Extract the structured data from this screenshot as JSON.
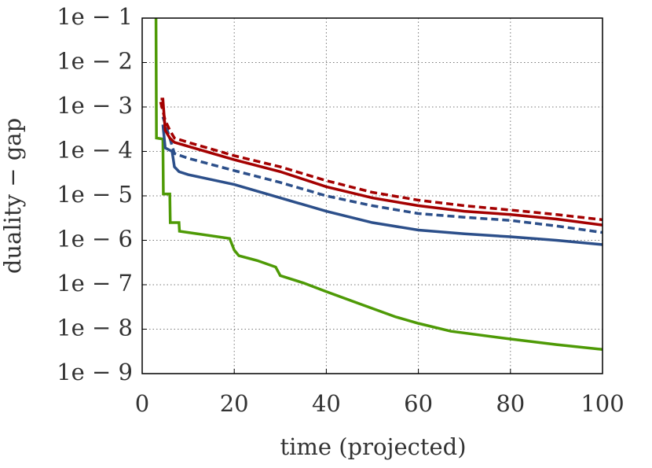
{
  "chart_data": {
    "type": "line",
    "xlabel": "time (projected)",
    "ylabel": "duality − gap",
    "xlim": [
      0,
      100
    ],
    "xticks": [
      0,
      20,
      40,
      60,
      80,
      100
    ],
    "ylim": [
      1e-09,
      0.1
    ],
    "yscale": "log",
    "yticks": [
      {
        "value": 0.1,
        "label": "1e − 1"
      },
      {
        "value": 0.01,
        "label": "1e − 2"
      },
      {
        "value": 0.001,
        "label": "1e − 3"
      },
      {
        "value": 0.0001,
        "label": "1e − 4"
      },
      {
        "value": 1e-05,
        "label": "1e − 5"
      },
      {
        "value": 1e-06,
        "label": "1e − 6"
      },
      {
        "value": 1e-07,
        "label": "1e − 7"
      },
      {
        "value": 1e-08,
        "label": "1e − 8"
      },
      {
        "value": 1e-09,
        "label": "1e − 9"
      }
    ],
    "grid": true,
    "series": [
      {
        "color": "#4e9a06",
        "style": "solid",
        "x": [
          3,
          3.1,
          4.5,
          4.6,
          6,
          6.1,
          8,
          8.1,
          12,
          19,
          20,
          21,
          25,
          29,
          30,
          35,
          40,
          47,
          55,
          60,
          67,
          80,
          90,
          100
        ],
        "values": [
          0.1,
          0.0002,
          0.00019,
          1.1e-05,
          1.1e-05,
          2.5e-06,
          2.5e-06,
          1.6e-06,
          1.4e-06,
          1.1e-06,
          6e-07,
          4.5e-07,
          3.5e-07,
          2.5e-07,
          1.6e-07,
          1.1e-07,
          7e-08,
          3.8e-08,
          1.9e-08,
          1.35e-08,
          9e-09,
          6e-09,
          4.5e-09,
          3.5e-09
        ]
      },
      {
        "color": "#2c4f8a",
        "style": "solid",
        "x": [
          4.5,
          5,
          6.5,
          7,
          8,
          10,
          20,
          30,
          40,
          50,
          60,
          70,
          80,
          90,
          100
        ],
        "values": [
          0.0004,
          0.00012,
          0.0001,
          4.5e-05,
          3.5e-05,
          3e-05,
          1.8e-05,
          9e-06,
          4.5e-06,
          2.5e-06,
          1.7e-06,
          1.4e-06,
          1.2e-06,
          1e-06,
          8e-07
        ]
      },
      {
        "color": "#2c4f8a",
        "style": "dashed",
        "x": [
          4.5,
          6,
          7,
          10,
          20,
          30,
          40,
          50,
          60,
          70,
          80,
          90,
          100
        ],
        "values": [
          0.0006,
          0.0002,
          9e-05,
          7e-05,
          3.7e-05,
          2e-05,
          1e-05,
          6e-06,
          4e-06,
          3.3e-06,
          2.8e-06,
          2.1e-06,
          1.5e-06
        ]
      },
      {
        "color": "#a40000",
        "style": "solid",
        "x": [
          4,
          4.5,
          5,
          6,
          7,
          10,
          20,
          30,
          40,
          50,
          60,
          70,
          80,
          90,
          100
        ],
        "values": [
          0.0015,
          0.0015,
          0.0003,
          0.0002,
          0.00016,
          0.00013,
          6.5e-05,
          3.5e-05,
          1.6e-05,
          9e-06,
          6e-06,
          4.5e-06,
          3.8e-06,
          3e-06,
          2.2e-06
        ]
      },
      {
        "color": "#a40000",
        "style": "dashed",
        "x": [
          4,
          5,
          6,
          7,
          10,
          20,
          30,
          40,
          50,
          60,
          70,
          80,
          90,
          100
        ],
        "values": [
          0.0013,
          0.0005,
          0.0003,
          0.0002,
          0.00016,
          8e-05,
          4.5e-05,
          2.2e-05,
          1.2e-05,
          8e-06,
          6e-06,
          4.8e-06,
          3.8e-06,
          2.9e-06
        ]
      }
    ]
  }
}
